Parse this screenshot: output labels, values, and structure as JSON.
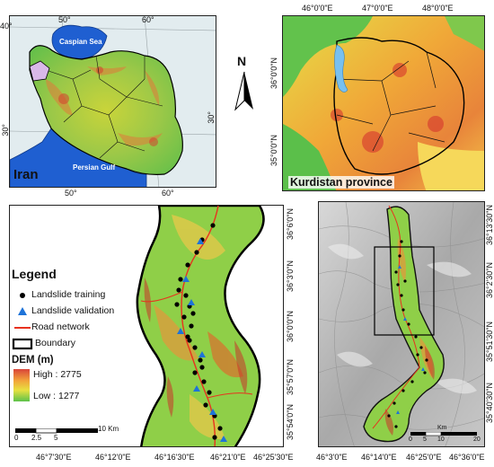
{
  "iran_map": {
    "title": "Iran",
    "caspian_label": "Caspian Sea",
    "gulf_label": "Persian Gulf",
    "top_ticks": [
      "50°",
      "60°"
    ],
    "bottom_ticks": [
      "50°",
      "60°"
    ],
    "left_ticks": [
      "40°",
      "30°"
    ],
    "right_ticks": [
      "30°"
    ]
  },
  "kurdistan_map": {
    "title": "Kurdistan province",
    "top_ticks": [
      "46°0'0\"E",
      "47°0'0\"E",
      "48°0'0\"E"
    ],
    "right_ticks": [
      "36°0'0\"N",
      "35°0'0\"N"
    ]
  },
  "north_arrow": {
    "label": "N"
  },
  "detail_map": {
    "right_ticks": [
      "36°6'0\"N",
      "36°3'0\"N",
      "36°0'0\"N",
      "35°57'0\"N",
      "35°54'0\"N"
    ],
    "bottom_ticks": [
      "46°7'30\"E",
      "46°12'0\"E",
      "46°16'30\"E",
      "46°21'0\"E",
      "46°25'30\"E"
    ],
    "scale": {
      "labels": [
        "0",
        "2.5",
        "5",
        "10 Km"
      ]
    }
  },
  "legend": {
    "title": "Legend",
    "items": [
      {
        "label": "Landslide training",
        "symbol": "dot",
        "color": "#000000"
      },
      {
        "label": "Landslide validation",
        "symbol": "triangle",
        "color": "#1e73d8"
      },
      {
        "label": "Road network",
        "symbol": "line",
        "color": "#e8321e"
      },
      {
        "label": "Boundary",
        "symbol": "box",
        "color": "#000000"
      }
    ],
    "dem_title": "DEM (m)",
    "dem_high": "High : 2775",
    "dem_low": "Low : 1277"
  },
  "overview_map": {
    "left_ticks": [
      "36°13'30\"N",
      "36°2'30\"N",
      "35°51'30\"N",
      "35°40'30\"N"
    ],
    "bottom_ticks": [
      "46°3'0\"E",
      "46°14'0\"E",
      "46°25'0\"E",
      "46°36'0\"E"
    ],
    "scale": {
      "unit": "Km",
      "labels": [
        "0",
        "5",
        "10",
        "20"
      ]
    }
  }
}
